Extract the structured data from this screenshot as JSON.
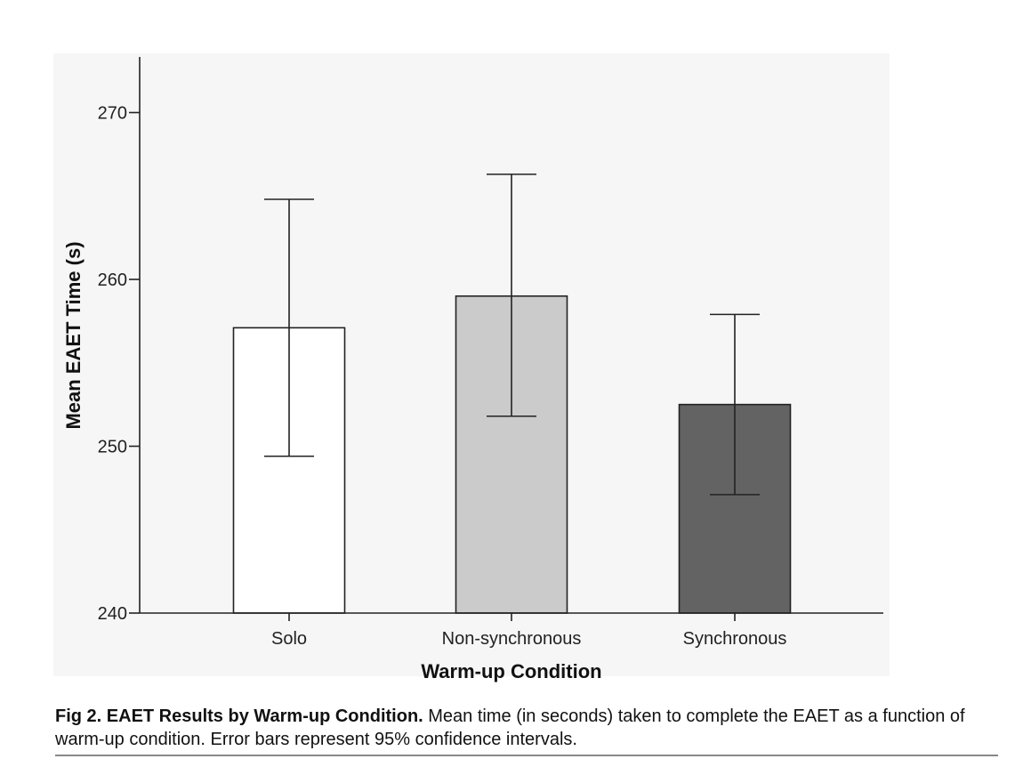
{
  "chart_data": {
    "type": "bar",
    "categories": [
      "Solo",
      "Non-synchronous",
      "Synchronous"
    ],
    "values": [
      257.1,
      259.0,
      252.5
    ],
    "error_low": [
      249.4,
      251.8,
      247.1
    ],
    "error_high": [
      264.8,
      266.3,
      257.9
    ],
    "bar_colors": [
      "#ffffff",
      "#cbcbcb",
      "#636363"
    ],
    "xlabel": "Warm-up Condition",
    "ylabel": "Mean EAET Time (s)",
    "ylim": [
      240,
      273
    ],
    "yticks": [
      240,
      250,
      260,
      270
    ],
    "grid": false
  },
  "caption": {
    "label": "Fig 2.  EAET Results by Warm-up Condition.",
    "text": " Mean time (in seconds) taken to complete the EAET as a function of warm-up condition. Error bars represent 95% confidence intervals."
  }
}
